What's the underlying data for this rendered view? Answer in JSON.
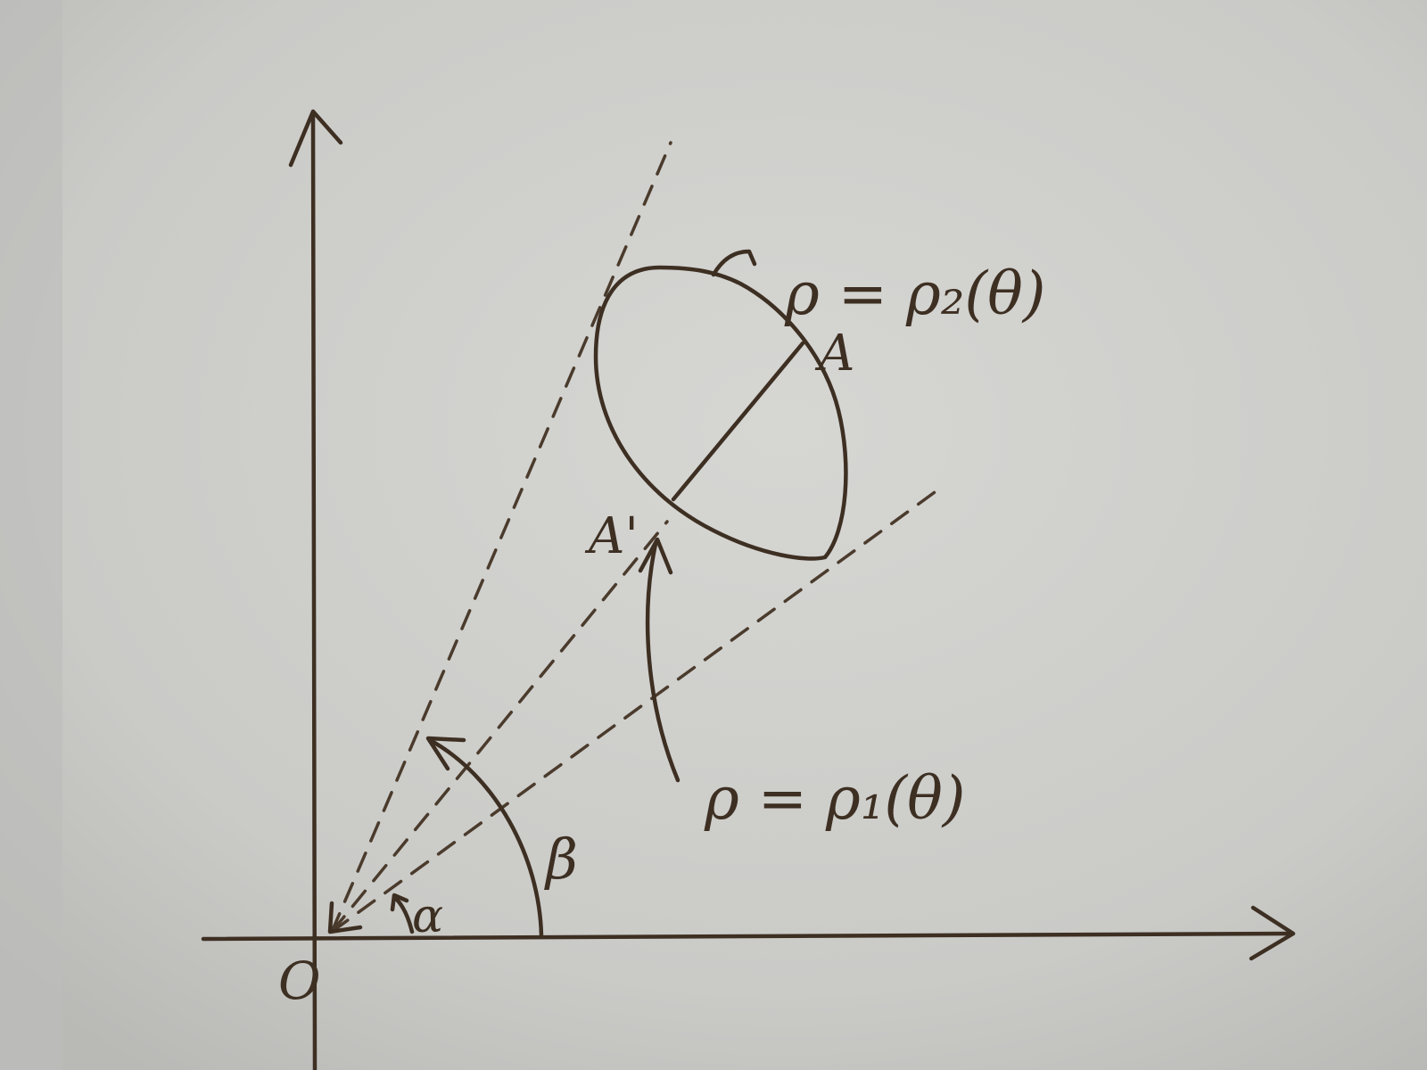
{
  "labels": {
    "origin": "O",
    "point_a": "A",
    "point_a_prime": "A'",
    "angle_alpha": "α",
    "angle_beta": "β",
    "curve_outer": "ρ = ρ₂(θ)",
    "curve_inner": "ρ = ρ₁(θ)"
  },
  "colors": {
    "paper": "#c9c9c6",
    "ink": "#3d2f22"
  }
}
